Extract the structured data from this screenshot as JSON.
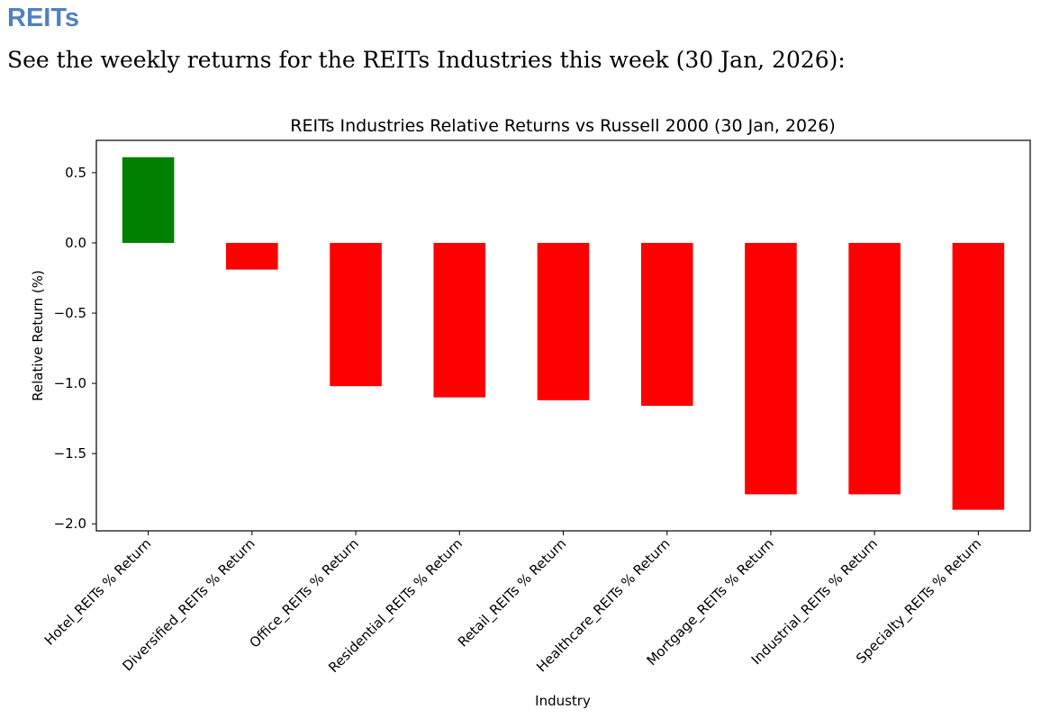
{
  "page": {
    "heading": "REITs",
    "subheading": "See the weekly returns for the REITs Industries this week (30 Jan, 2026):"
  },
  "chart_data": {
    "type": "bar",
    "title": "REITs Industries Relative Returns vs Russell 2000 (30 Jan, 2026)",
    "xlabel": "Industry",
    "ylabel": "Relative Return (%)",
    "categories": [
      "Hotel_REITs % Return",
      "Diversified_REITs % Return",
      "Office_REITs % Return",
      "Residential_REITs % Return",
      "Retail_REITs % Return",
      "Healthcare_REITs % Return",
      "Mortgage_REITs % Return",
      "Industrial_REITs % Return",
      "Specialty_REITs % Return"
    ],
    "values": [
      0.61,
      -0.19,
      -1.02,
      -1.1,
      -1.12,
      -1.16,
      -1.79,
      -1.79,
      -1.9
    ],
    "ylim": [
      -2.05,
      0.73
    ],
    "yticks": [
      0.5,
      0.0,
      -0.5,
      -1.0,
      -1.5,
      -2.0
    ],
    "ytick_labels": [
      "0.5",
      "0.0",
      "−0.5",
      "−1.0",
      "−1.5",
      "−2.0"
    ],
    "positive_color": "#008000",
    "negative_color": "#ff0000",
    "grid": false,
    "legend": false
  }
}
